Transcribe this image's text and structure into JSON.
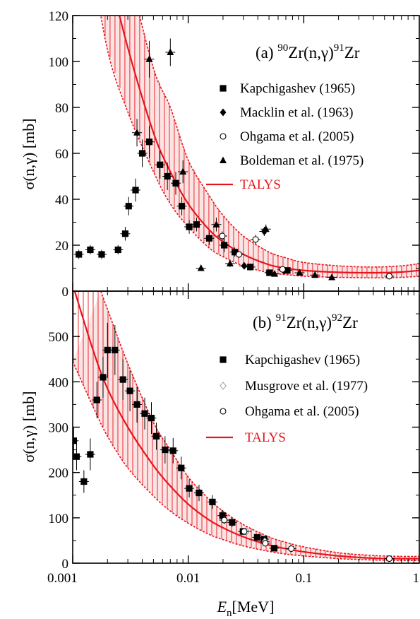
{
  "colors": {
    "talys": "#e8141b",
    "band_fill": "#fbe4e4",
    "marker": "#000000"
  },
  "shared_x": {
    "label_italic": "E",
    "label_subscript": "n",
    "label_unit": "[MeV]",
    "scale": "log",
    "range": [
      0.001,
      1
    ],
    "ticks": [
      {
        "value": 0.001,
        "label": "0.001"
      },
      {
        "value": 0.01,
        "label": "0.01"
      },
      {
        "value": 0.1,
        "label": "0.1"
      },
      {
        "value": 1,
        "label": "1"
      }
    ]
  },
  "chart_data": [
    {
      "type": "scatter",
      "panel": "a",
      "title": {
        "prefix": "(a) ",
        "sup1": "90",
        "mid": "Zr(n,γ)",
        "sup2": "91",
        "end": "Zr"
      },
      "ylabel": "σ(n,γ) [mb]",
      "xlabel": "E_n[MeV]",
      "xscale": "log",
      "xlim": [
        0.001,
        1
      ],
      "ylim": [
        0,
        120
      ],
      "yticks": [
        0,
        20,
        40,
        60,
        80,
        100,
        120
      ],
      "legend_position": "top-right",
      "series": [
        {
          "name": "Kapchigashev (1965)",
          "marker": "filled-square",
          "points": [
            {
              "x": 0.00113,
              "y": 16,
              "err": 2
            },
            {
              "x": 0.00142,
              "y": 18,
              "err": 2
            },
            {
              "x": 0.00178,
              "y": 16,
              "err": 2
            },
            {
              "x": 0.00247,
              "y": 18,
              "err": 2
            },
            {
              "x": 0.00285,
              "y": 25,
              "err": 3
            },
            {
              "x": 0.00305,
              "y": 37,
              "err": 4
            },
            {
              "x": 0.0035,
              "y": 44,
              "err": 5
            },
            {
              "x": 0.004,
              "y": 60,
              "err": 6
            },
            {
              "x": 0.0046,
              "y": 65,
              "err": 7
            },
            {
              "x": 0.0057,
              "y": 55,
              "err": 6
            },
            {
              "x": 0.0066,
              "y": 50,
              "err": 6
            },
            {
              "x": 0.0078,
              "y": 47,
              "err": 5
            },
            {
              "x": 0.0088,
              "y": 37,
              "err": 4
            },
            {
              "x": 0.0102,
              "y": 28,
              "err": 3
            },
            {
              "x": 0.0118,
              "y": 29,
              "err": 3
            },
            {
              "x": 0.0152,
              "y": 23,
              "err": 3
            },
            {
              "x": 0.0205,
              "y": 20,
              "err": 3
            },
            {
              "x": 0.0253,
              "y": 17,
              "err": 2
            },
            {
              "x": 0.0345,
              "y": 10.5,
              "err": 1.5
            },
            {
              "x": 0.0505,
              "y": 8,
              "err": 1
            },
            {
              "x": 0.072,
              "y": 9,
              "err": 1
            }
          ]
        },
        {
          "name": "Macklin et al. (1963)",
          "marker": "filled-diamond",
          "points": [
            {
              "x": 0.0305,
              "y": 11,
              "err": 1.5
            },
            {
              "x": 0.0455,
              "y": 26,
              "err": 2
            },
            {
              "x": 0.067,
              "y": 9,
              "err": 1
            }
          ]
        },
        {
          "name": "Ohgama et al. (2005)",
          "marker": "open-circle",
          "points": [
            {
              "x": 0.0197,
              "y": 24,
              "err": 2
            },
            {
              "x": 0.0275,
              "y": 16,
              "err": 1.5
            },
            {
              "x": 0.0383,
              "y": 22.5,
              "err": 2
            },
            {
              "x": 0.0655,
              "y": 9.5,
              "err": 1
            },
            {
              "x": 0.55,
              "y": 6.5,
              "err": 0.8
            }
          ]
        },
        {
          "name": "Boldeman et al. (1975)",
          "marker": "filled-triangle",
          "points": [
            {
              "x": 0.0036,
              "y": 69,
              "err": 6
            },
            {
              "x": 0.0046,
              "y": 101,
              "err": 8
            },
            {
              "x": 0.007,
              "y": 104,
              "err": 6
            },
            {
              "x": 0.009,
              "y": 52,
              "err": 5
            },
            {
              "x": 0.0129,
              "y": 10,
              "err": 1
            },
            {
              "x": 0.0175,
              "y": 29,
              "err": 3
            },
            {
              "x": 0.023,
              "y": 12,
              "err": 1.5
            },
            {
              "x": 0.047,
              "y": 27,
              "err": 2
            },
            {
              "x": 0.056,
              "y": 7.5,
              "err": 1
            },
            {
              "x": 0.092,
              "y": 8,
              "err": 1
            },
            {
              "x": 0.125,
              "y": 7,
              "err": 1
            },
            {
              "x": 0.175,
              "y": 6,
              "err": 1
            }
          ]
        }
      ],
      "talys": {
        "name": "TALYS",
        "central": [
          {
            "x": 0.0014,
            "y": 190
          },
          {
            "x": 0.002,
            "y": 143
          },
          {
            "x": 0.003,
            "y": 106
          },
          {
            "x": 0.005,
            "y": 69
          },
          {
            "x": 0.007,
            "y": 52
          },
          {
            "x": 0.01,
            "y": 38
          },
          {
            "x": 0.015,
            "y": 27
          },
          {
            "x": 0.02,
            "y": 21.5
          },
          {
            "x": 0.03,
            "y": 16
          },
          {
            "x": 0.05,
            "y": 11.5
          },
          {
            "x": 0.07,
            "y": 10
          },
          {
            "x": 0.1,
            "y": 9
          },
          {
            "x": 0.2,
            "y": 8.2
          },
          {
            "x": 0.4,
            "y": 8
          },
          {
            "x": 0.7,
            "y": 8.3
          },
          {
            "x": 1,
            "y": 9
          }
        ],
        "upper": [
          {
            "x": 0.0017,
            "y": 190
          },
          {
            "x": 0.002,
            "y": 170
          },
          {
            "x": 0.003,
            "y": 140
          },
          {
            "x": 0.005,
            "y": 97
          },
          {
            "x": 0.007,
            "y": 80
          },
          {
            "x": 0.01,
            "y": 57
          },
          {
            "x": 0.015,
            "y": 42
          },
          {
            "x": 0.02,
            "y": 33
          },
          {
            "x": 0.03,
            "y": 24
          },
          {
            "x": 0.05,
            "y": 17
          },
          {
            "x": 0.07,
            "y": 14.5
          },
          {
            "x": 0.1,
            "y": 12.5
          },
          {
            "x": 0.2,
            "y": 11
          },
          {
            "x": 0.4,
            "y": 10.5
          },
          {
            "x": 0.7,
            "y": 11
          },
          {
            "x": 1,
            "y": 12
          }
        ],
        "lower": [
          {
            "x": 0.0014,
            "y": 150
          },
          {
            "x": 0.002,
            "y": 105
          },
          {
            "x": 0.003,
            "y": 78
          },
          {
            "x": 0.005,
            "y": 52
          },
          {
            "x": 0.007,
            "y": 38
          },
          {
            "x": 0.01,
            "y": 28
          },
          {
            "x": 0.015,
            "y": 19
          },
          {
            "x": 0.02,
            "y": 15
          },
          {
            "x": 0.03,
            "y": 11
          },
          {
            "x": 0.05,
            "y": 8
          },
          {
            "x": 0.07,
            "y": 7.2
          },
          {
            "x": 0.1,
            "y": 6.5
          },
          {
            "x": 0.2,
            "y": 6
          },
          {
            "x": 0.4,
            "y": 5.8
          },
          {
            "x": 0.7,
            "y": 6
          },
          {
            "x": 1,
            "y": 6.5
          }
        ]
      }
    },
    {
      "type": "scatter",
      "panel": "b",
      "title": {
        "prefix": "(b) ",
        "sup1": "91",
        "mid": "Zr(n,γ)",
        "sup2": "92",
        "end": "Zr"
      },
      "ylabel": "σ(n,γ) [mb]",
      "xlabel": "E_n[MeV]",
      "xscale": "log",
      "xlim": [
        0.001,
        1
      ],
      "ylim": [
        0,
        600
      ],
      "yticks": [
        0,
        100,
        200,
        300,
        400,
        500
      ],
      "legend_position": "top-right",
      "series": [
        {
          "name": "Kapchigashev (1965)",
          "marker": "filled-square",
          "points": [
            {
              "x": 0.00102,
              "y": 270,
              "err": 30
            },
            {
              "x": 0.00108,
              "y": 235,
              "err": 30
            },
            {
              "x": 0.00125,
              "y": 180,
              "err": 25
            },
            {
              "x": 0.00142,
              "y": 240,
              "err": 35
            },
            {
              "x": 0.00162,
              "y": 360,
              "err": 40
            },
            {
              "x": 0.00183,
              "y": 410,
              "err": 45
            },
            {
              "x": 0.002,
              "y": 470,
              "err": 60
            },
            {
              "x": 0.00232,
              "y": 470,
              "err": 55
            },
            {
              "x": 0.00272,
              "y": 405,
              "err": 45
            },
            {
              "x": 0.00313,
              "y": 380,
              "err": 45
            },
            {
              "x": 0.0036,
              "y": 350,
              "err": 40
            },
            {
              "x": 0.0042,
              "y": 330,
              "err": 35
            },
            {
              "x": 0.0048,
              "y": 320,
              "err": 35
            },
            {
              "x": 0.0053,
              "y": 280,
              "err": 30
            },
            {
              "x": 0.0063,
              "y": 250,
              "err": 30
            },
            {
              "x": 0.0074,
              "y": 248,
              "err": 28
            },
            {
              "x": 0.0087,
              "y": 210,
              "err": 25
            },
            {
              "x": 0.0102,
              "y": 165,
              "err": 20
            },
            {
              "x": 0.0124,
              "y": 155,
              "err": 18
            },
            {
              "x": 0.0162,
              "y": 135,
              "err": 15
            },
            {
              "x": 0.0198,
              "y": 105,
              "err": 12
            },
            {
              "x": 0.024,
              "y": 90,
              "err": 10
            },
            {
              "x": 0.0298,
              "y": 70,
              "err": 8
            },
            {
              "x": 0.0395,
              "y": 57,
              "err": 6
            },
            {
              "x": 0.0455,
              "y": 53,
              "err": 6
            },
            {
              "x": 0.0555,
              "y": 33,
              "err": 4
            }
          ]
        },
        {
          "name": "Musgrove et al. (1977)",
          "marker": "open-diamond",
          "points": [
            {
              "x": 0.0205,
              "y": 95,
              "err": 8
            },
            {
              "x": 0.032,
              "y": 70,
              "err": 6
            },
            {
              "x": 0.046,
              "y": 48,
              "err": 5
            },
            {
              "x": 0.077,
              "y": 32,
              "err": 4
            }
          ]
        },
        {
          "name": "Ohgama et al. (2005)",
          "marker": "open-circle",
          "points": [
            {
              "x": 0.0205,
              "y": 95,
              "err": 8
            },
            {
              "x": 0.0305,
              "y": 70,
              "err": 6
            },
            {
              "x": 0.0465,
              "y": 44,
              "err": 5
            },
            {
              "x": 0.078,
              "y": 32,
              "err": 4
            },
            {
              "x": 0.55,
              "y": 10,
              "err": 2
            }
          ]
        }
      ],
      "talys": {
        "name": "TALYS",
        "central": [
          {
            "x": 0.00104,
            "y": 600
          },
          {
            "x": 0.0015,
            "y": 470
          },
          {
            "x": 0.002,
            "y": 385
          },
          {
            "x": 0.003,
            "y": 300
          },
          {
            "x": 0.005,
            "y": 215
          },
          {
            "x": 0.007,
            "y": 170
          },
          {
            "x": 0.01,
            "y": 130
          },
          {
            "x": 0.015,
            "y": 96
          },
          {
            "x": 0.02,
            "y": 78
          },
          {
            "x": 0.03,
            "y": 58
          },
          {
            "x": 0.05,
            "y": 40
          },
          {
            "x": 0.07,
            "y": 32
          },
          {
            "x": 0.1,
            "y": 25
          },
          {
            "x": 0.2,
            "y": 16
          },
          {
            "x": 0.4,
            "y": 11
          },
          {
            "x": 0.7,
            "y": 10
          },
          {
            "x": 1,
            "y": 10
          }
        ],
        "upper": [
          {
            "x": 0.00175,
            "y": 600
          },
          {
            "x": 0.002,
            "y": 560
          },
          {
            "x": 0.003,
            "y": 440
          },
          {
            "x": 0.005,
            "y": 310
          },
          {
            "x": 0.007,
            "y": 250
          },
          {
            "x": 0.01,
            "y": 190
          },
          {
            "x": 0.015,
            "y": 142
          },
          {
            "x": 0.02,
            "y": 115
          },
          {
            "x": 0.03,
            "y": 85
          },
          {
            "x": 0.05,
            "y": 58
          },
          {
            "x": 0.07,
            "y": 46
          },
          {
            "x": 0.1,
            "y": 36
          },
          {
            "x": 0.2,
            "y": 23
          },
          {
            "x": 0.4,
            "y": 17
          },
          {
            "x": 0.7,
            "y": 15
          },
          {
            "x": 1,
            "y": 15
          }
        ],
        "lower": [
          {
            "x": 0.001,
            "y": 445
          },
          {
            "x": 0.0015,
            "y": 345
          },
          {
            "x": 0.002,
            "y": 280
          },
          {
            "x": 0.003,
            "y": 210
          },
          {
            "x": 0.005,
            "y": 148
          },
          {
            "x": 0.007,
            "y": 115
          },
          {
            "x": 0.01,
            "y": 88
          },
          {
            "x": 0.015,
            "y": 64
          },
          {
            "x": 0.02,
            "y": 52
          },
          {
            "x": 0.03,
            "y": 38
          },
          {
            "x": 0.05,
            "y": 26
          },
          {
            "x": 0.07,
            "y": 20
          },
          {
            "x": 0.1,
            "y": 16
          },
          {
            "x": 0.2,
            "y": 10
          },
          {
            "x": 0.4,
            "y": 7
          },
          {
            "x": 0.7,
            "y": 6
          },
          {
            "x": 1,
            "y": 6
          }
        ]
      }
    }
  ]
}
